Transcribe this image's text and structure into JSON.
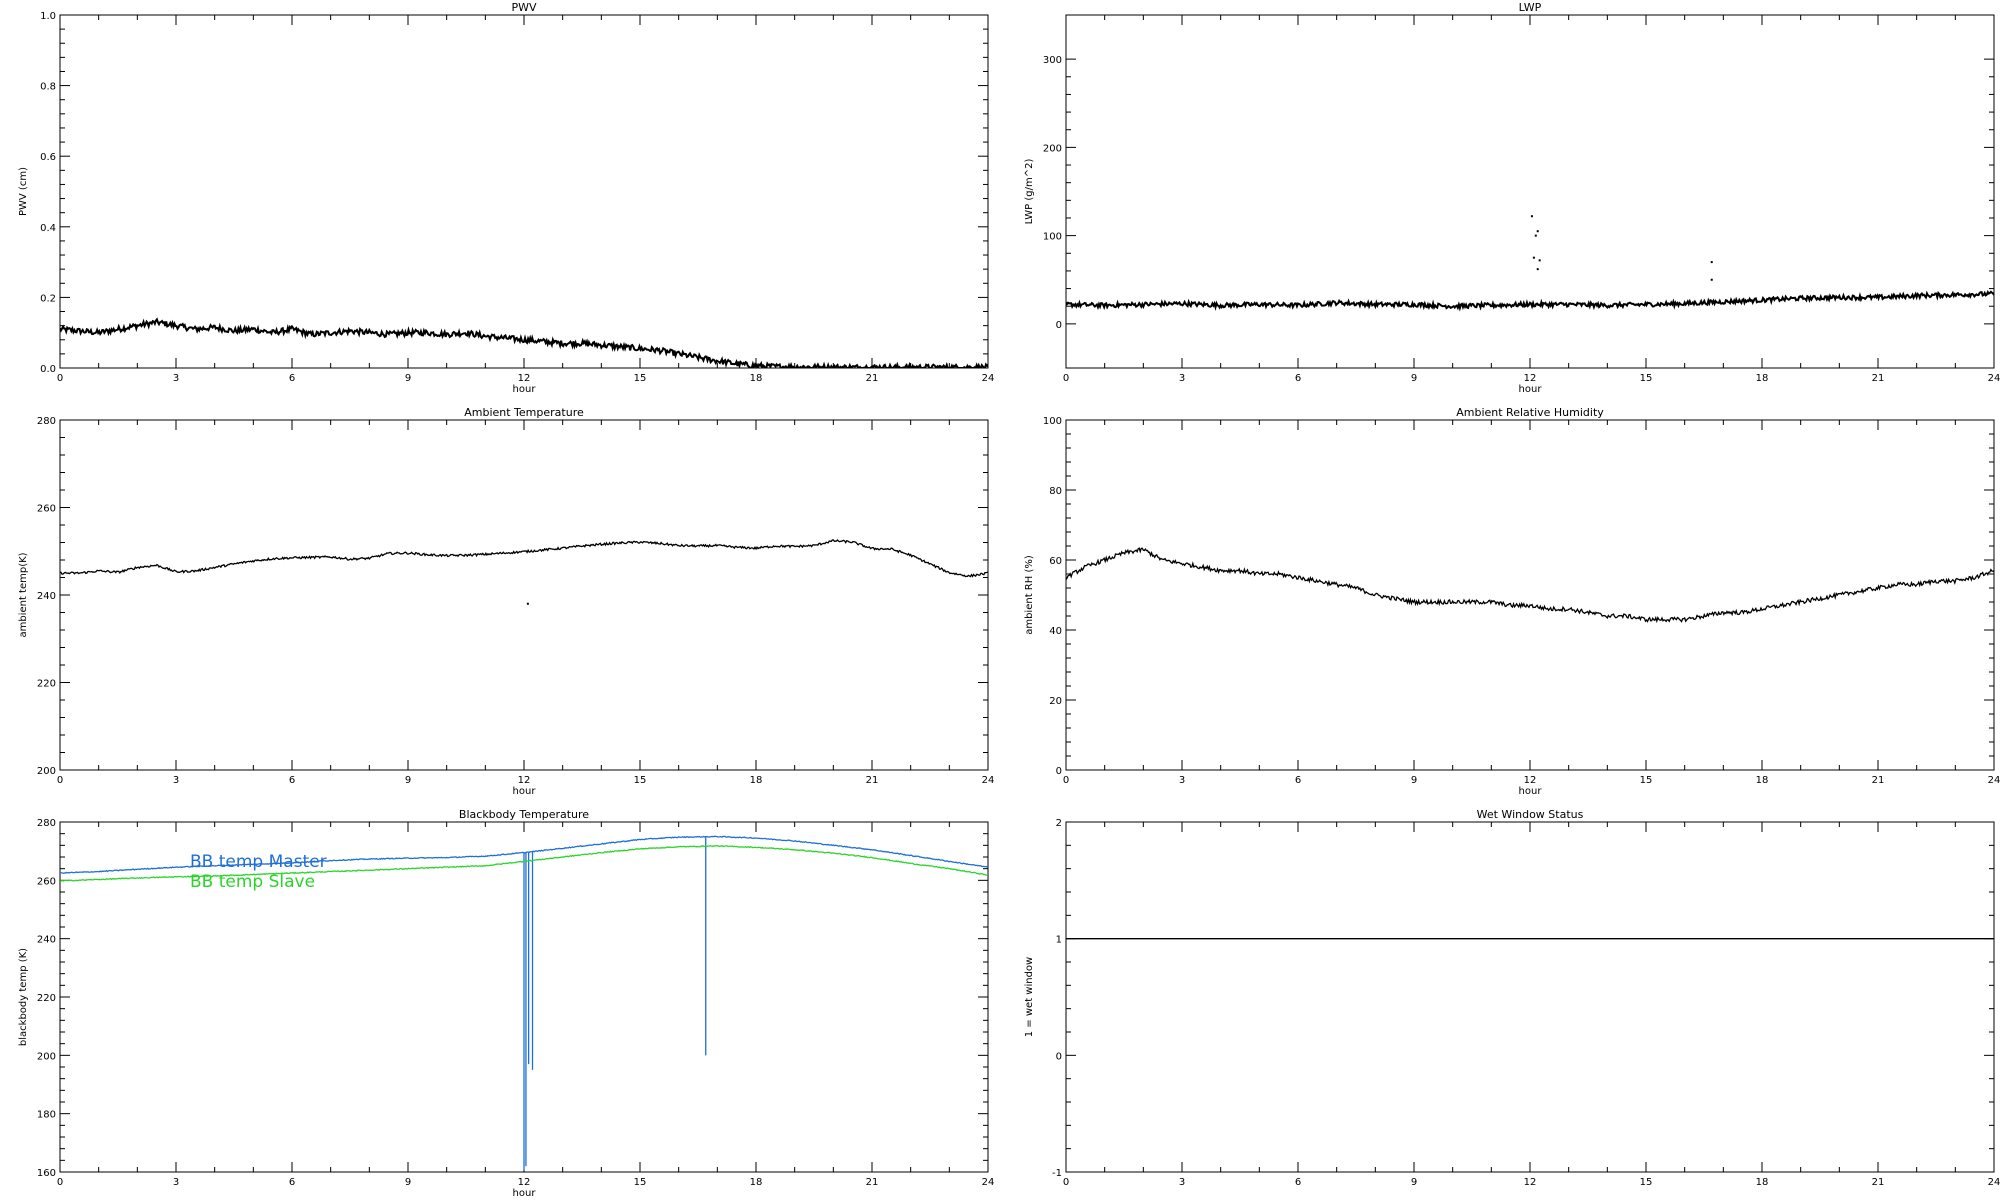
{
  "chart_data": [
    {
      "type": "line",
      "title": "PWV",
      "xlabel": "hour",
      "ylabel": "PWV (cm)",
      "xlim": [
        0,
        24
      ],
      "ylim": [
        0.0,
        1.0
      ],
      "xticks": [
        "0",
        "3",
        "6",
        "9",
        "12",
        "15",
        "18",
        "21",
        "24"
      ],
      "yticks": [
        "0.0",
        "0.2",
        "0.4",
        "0.6",
        "0.8",
        "1.0"
      ],
      "series": [
        {
          "color": "#000000",
          "noise": 0.008,
          "x": [
            0,
            0.5,
            1,
            1.5,
            2,
            2.5,
            3,
            3.5,
            4,
            4.5,
            5,
            5.5,
            6,
            6.5,
            7,
            7.5,
            8,
            8.5,
            9,
            9.5,
            10,
            10.5,
            11,
            11.5,
            12,
            12.5,
            13,
            13.5,
            14,
            14.5,
            15,
            15.5,
            16,
            16.5,
            17,
            17.5,
            18,
            18.5,
            19,
            19.5,
            20,
            20.5,
            21,
            21.5,
            22,
            22.5,
            23,
            23.5,
            24
          ],
          "y": [
            0.11,
            0.105,
            0.1,
            0.11,
            0.12,
            0.13,
            0.12,
            0.11,
            0.115,
            0.105,
            0.11,
            0.1,
            0.11,
            0.095,
            0.1,
            0.105,
            0.1,
            0.095,
            0.1,
            0.1,
            0.095,
            0.1,
            0.09,
            0.085,
            0.08,
            0.075,
            0.07,
            0.07,
            0.065,
            0.06,
            0.055,
            0.05,
            0.04,
            0.03,
            0.02,
            0.012,
            0.006,
            0.004,
            0.003,
            0.003,
            0.002,
            0.002,
            0.002,
            0.002,
            0.002,
            0.002,
            0.002,
            0.002,
            0.002
          ]
        }
      ]
    },
    {
      "type": "line",
      "title": "LWP",
      "xlabel": "hour",
      "ylabel": "LWP (g/m^2)",
      "xlim": [
        0,
        24
      ],
      "ylim": [
        -50,
        350
      ],
      "xticks": [
        "0",
        "3",
        "6",
        "9",
        "12",
        "15",
        "18",
        "21",
        "24"
      ],
      "yticks": [
        "0",
        "100",
        "200",
        "300"
      ],
      "series": [
        {
          "color": "#000000",
          "noise": 2.5,
          "x": [
            0,
            1,
            2,
            3,
            4,
            5,
            6,
            7,
            8,
            9,
            10,
            11,
            12,
            13,
            14,
            15,
            16,
            17,
            18,
            19,
            20,
            21,
            22,
            23,
            24
          ],
          "y": [
            22,
            21,
            22,
            23,
            21,
            22,
            21,
            24,
            22,
            22,
            20,
            21,
            22,
            22,
            21,
            22,
            23,
            25,
            27,
            29,
            30,
            30,
            32,
            33,
            34
          ]
        }
      ],
      "outliers": {
        "x": [
          12.05,
          12.2,
          12.15,
          12.1,
          12.25,
          12.2,
          16.7,
          16.7
        ],
        "y": [
          122,
          105,
          100,
          75,
          72,
          62,
          70,
          50
        ]
      }
    },
    {
      "type": "line",
      "title": "Ambient Temperature",
      "xlabel": "hour",
      "ylabel": "ambient temp(K)",
      "xlim": [
        0,
        24
      ],
      "ylim": [
        200,
        280
      ],
      "xticks": [
        "0",
        "3",
        "6",
        "9",
        "12",
        "15",
        "18",
        "21",
        "24"
      ],
      "yticks": [
        "200",
        "220",
        "240",
        "260",
        "280"
      ],
      "series": [
        {
          "color": "#000000",
          "noise": 0.25,
          "x": [
            0,
            0.5,
            1,
            1.5,
            2,
            2.5,
            3,
            3.5,
            4,
            4.5,
            5,
            5.5,
            6,
            6.5,
            7,
            7.5,
            8,
            8.5,
            9,
            9.5,
            10,
            10.5,
            11,
            11.5,
            12,
            12.5,
            13,
            13.5,
            14,
            14.5,
            15,
            15.5,
            16,
            16.5,
            17,
            17.5,
            18,
            18.5,
            19,
            19.5,
            20,
            20.5,
            21,
            21.5,
            22,
            22.5,
            23,
            23.5,
            24
          ],
          "y": [
            245,
            245,
            245.5,
            245.2,
            246.3,
            246.8,
            245.3,
            245.5,
            246.3,
            247.1,
            247.8,
            248.3,
            248.5,
            248.6,
            248.7,
            248.2,
            248.4,
            249.5,
            249.6,
            249.2,
            249,
            249.1,
            249.3,
            249.6,
            249.9,
            250.3,
            250.7,
            251.2,
            251.6,
            251.9,
            252.1,
            251.8,
            251.3,
            251.2,
            251.3,
            250.9,
            250.7,
            251.2,
            251.1,
            251.3,
            252.4,
            252.1,
            250.6,
            250.5,
            249.1,
            247.1,
            245.1,
            244.3,
            245
          ]
        }
      ],
      "outliers": {
        "x": [
          12.1
        ],
        "y": [
          238
        ]
      }
    },
    {
      "type": "line",
      "title": "Ambient Relative Humidity",
      "xlabel": "hour",
      "ylabel": "ambient RH (%)",
      "xlim": [
        0,
        24
      ],
      "ylim": [
        0,
        100
      ],
      "xticks": [
        "0",
        "3",
        "6",
        "9",
        "12",
        "15",
        "18",
        "21",
        "24"
      ],
      "yticks": [
        "0",
        "20",
        "40",
        "60",
        "80",
        "100"
      ],
      "series": [
        {
          "color": "#000000",
          "noise": 0.6,
          "x": [
            0,
            0.5,
            1,
            1.5,
            2,
            2.5,
            3,
            3.5,
            4,
            4.5,
            5,
            5.5,
            6,
            6.5,
            7,
            7.5,
            8,
            8.5,
            9,
            9.5,
            10,
            10.5,
            11,
            11.5,
            12,
            12.5,
            13,
            13.5,
            14,
            14.5,
            15,
            15.5,
            16,
            16.5,
            17,
            17.5,
            18,
            18.5,
            19,
            19.5,
            20,
            20.5,
            21,
            21.5,
            22,
            22.5,
            23,
            23.5,
            24
          ],
          "y": [
            55,
            58,
            60,
            62,
            63,
            60,
            59,
            58,
            57,
            57,
            56,
            56,
            55,
            54,
            53,
            52,
            50,
            49,
            48,
            48,
            48,
            48,
            48,
            47,
            47,
            46,
            46,
            45,
            44,
            44,
            43,
            43,
            43,
            44,
            45,
            45,
            46,
            47,
            48,
            49,
            50,
            51,
            52,
            53,
            53,
            54,
            54,
            55,
            57
          ]
        }
      ]
    },
    {
      "type": "line",
      "title": "Blackbody Temperature",
      "xlabel": "hour",
      "ylabel": "blackbody temp (K)",
      "xlim": [
        0,
        24
      ],
      "ylim": [
        160,
        280
      ],
      "xticks": [
        "0",
        "3",
        "6",
        "9",
        "12",
        "15",
        "18",
        "21",
        "24"
      ],
      "yticks": [
        "160",
        "180",
        "200",
        "220",
        "240",
        "260",
        "280"
      ],
      "legend": [
        "BB temp Master",
        "BB temp Slave"
      ],
      "series": [
        {
          "name": "BB temp Master",
          "color": "#1e6fd9",
          "noise": 0.15,
          "x": [
            0,
            1,
            2,
            3,
            4,
            5,
            6,
            7,
            8,
            9,
            10,
            11,
            12,
            13,
            14,
            15,
            16,
            17,
            18,
            19,
            20,
            21,
            22,
            23,
            24
          ],
          "y": [
            262.5,
            263,
            263.8,
            264.5,
            265,
            265.5,
            266,
            266.8,
            267.3,
            267.6,
            267.8,
            268.3,
            269.5,
            271,
            272.5,
            274,
            274.8,
            275,
            274.5,
            273.5,
            272,
            270.5,
            268.5,
            266.5,
            264.5
          ],
          "spikes": [
            [
              12.0,
              160.5
            ],
            [
              12.05,
              162
            ],
            [
              12.12,
              197
            ],
            [
              12.22,
              195
            ],
            [
              16.7,
              200
            ]
          ]
        },
        {
          "name": "BB temp Slave",
          "color": "#2ad52a",
          "noise": 0.15,
          "x": [
            0,
            1,
            2,
            3,
            4,
            5,
            6,
            7,
            8,
            9,
            10,
            11,
            12,
            13,
            14,
            15,
            16,
            17,
            18,
            19,
            20,
            21,
            22,
            23,
            24
          ],
          "y": [
            259.8,
            260.3,
            260.8,
            261.2,
            261.5,
            262,
            262.5,
            263,
            263.5,
            264,
            264.5,
            265,
            266.5,
            268,
            269.5,
            270.8,
            271.5,
            271.8,
            271.3,
            270.5,
            269.3,
            267.8,
            265.8,
            264,
            261.8
          ]
        }
      ]
    },
    {
      "type": "line",
      "title": "Wet Window Status",
      "xlabel": "",
      "ylabel": "1 = wet window",
      "xlim": [
        0,
        24
      ],
      "ylim": [
        -1,
        2
      ],
      "xticks": [
        "0",
        "3",
        "6",
        "9",
        "12",
        "15",
        "18",
        "21",
        "24"
      ],
      "yticks": [
        "-1",
        "0",
        "1",
        "2"
      ],
      "series": [
        {
          "color": "#000000",
          "noise": 0,
          "x": [
            0,
            24
          ],
          "y": [
            1,
            1
          ]
        }
      ]
    }
  ]
}
